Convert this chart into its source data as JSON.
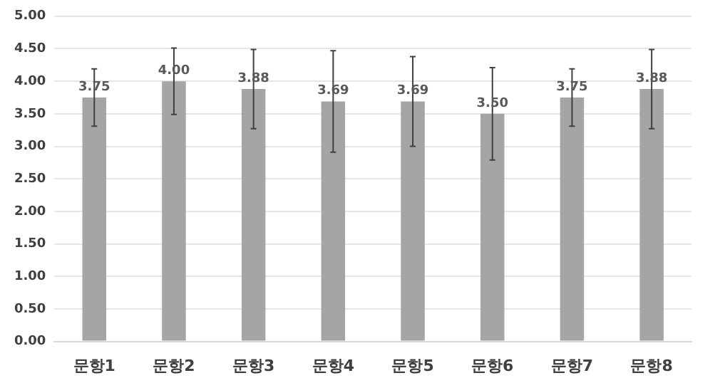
{
  "chart_data": {
    "type": "bar",
    "categories": [
      "문항1",
      "문항2",
      "문항3",
      "문항4",
      "문항5",
      "문항6",
      "문항7",
      "문항8"
    ],
    "values": [
      3.75,
      4.0,
      3.88,
      3.69,
      3.69,
      3.5,
      3.75,
      3.88
    ],
    "value_labels": [
      "3.75",
      "4.00",
      "3.88",
      "3.69",
      "3.69",
      "3.50",
      "3.75",
      "3.88"
    ],
    "errors": [
      0.44,
      0.51,
      0.61,
      0.78,
      0.69,
      0.71,
      0.44,
      0.61
    ],
    "color": "#a5a5a5",
    "ylim": [
      0,
      5
    ],
    "yticks": [
      {
        "value": 0,
        "label": "0.00"
      },
      {
        "value": 0.5,
        "label": "0.50"
      },
      {
        "value": 1,
        "label": "1.00"
      },
      {
        "value": 1.5,
        "label": "1.50"
      },
      {
        "value": 2,
        "label": "2.00"
      },
      {
        "value": 2.5,
        "label": "2.50"
      },
      {
        "value": 3,
        "label": "3.00"
      },
      {
        "value": 3.5,
        "label": "3.50"
      },
      {
        "value": 4,
        "label": "4.00"
      },
      {
        "value": 4.5,
        "label": "4.50"
      },
      {
        "value": 5,
        "label": "5.00"
      }
    ],
    "grid": "y",
    "legend": false
  }
}
